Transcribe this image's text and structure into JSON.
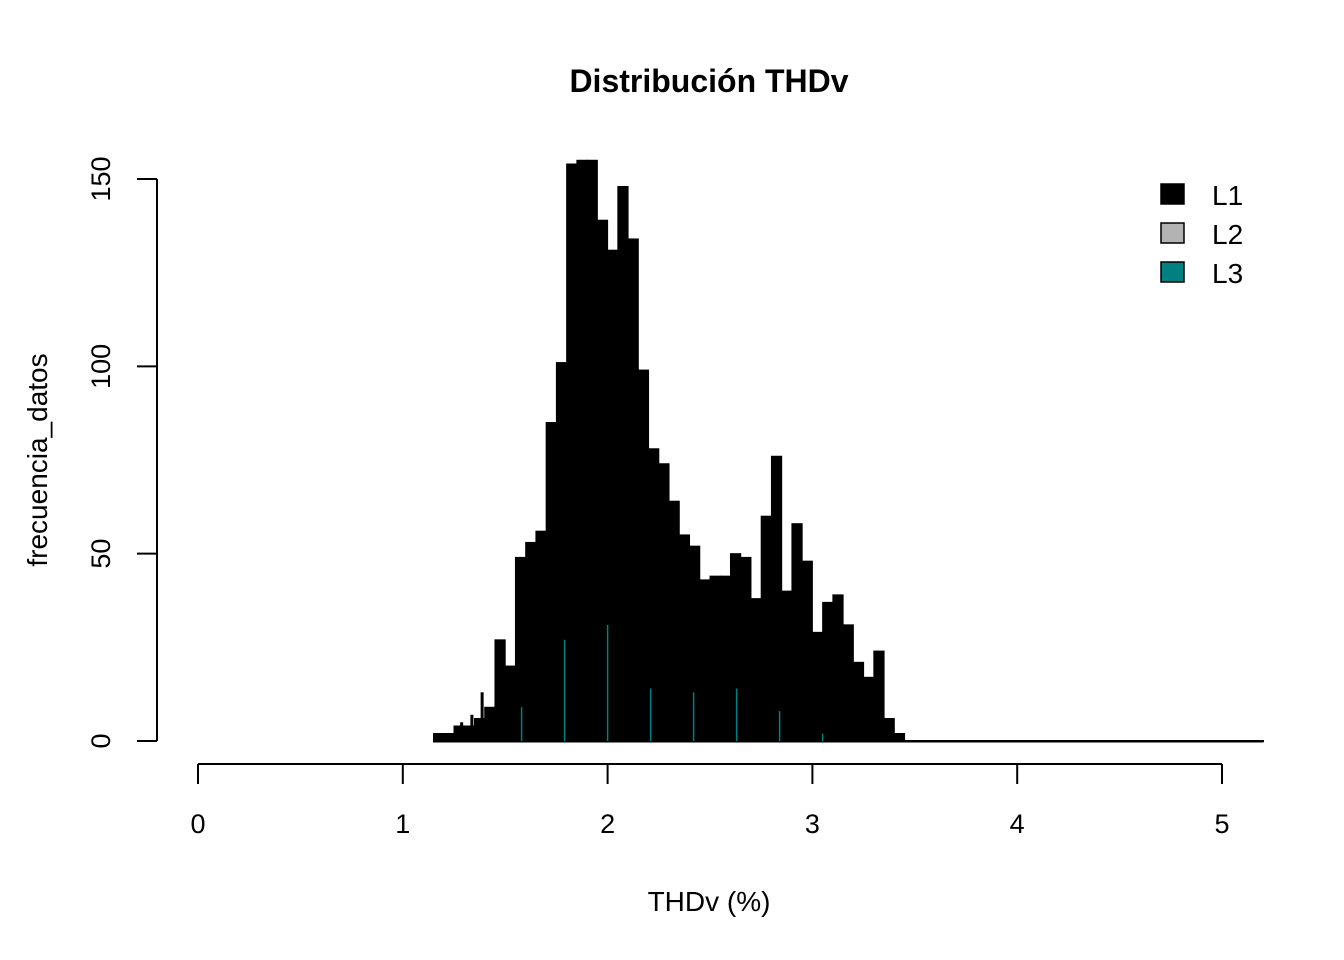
{
  "chart_data": {
    "type": "histogram",
    "title": "Distribución THDv",
    "xlabel": "THDv (%)",
    "ylabel": "frecuencia_datos",
    "xlim": [
      0,
      5
    ],
    "ylim": [
      0,
      150
    ],
    "x_ticks": [
      "0",
      "1",
      "2",
      "3",
      "4",
      "5"
    ],
    "y_ticks": [
      "0",
      "50",
      "100",
      "150"
    ],
    "bin_width": 0.05,
    "legend": {
      "position": "top-right"
    },
    "series": [
      {
        "name": "L1",
        "color": "#000000",
        "bins": [
          [
            1.15,
            2
          ],
          [
            1.2,
            2
          ],
          [
            1.25,
            4
          ],
          [
            1.3,
            4
          ],
          [
            1.35,
            6
          ],
          [
            1.4,
            9
          ],
          [
            1.45,
            27
          ],
          [
            1.5,
            20
          ],
          [
            1.55,
            49
          ],
          [
            1.6,
            53
          ],
          [
            1.65,
            56
          ],
          [
            1.7,
            85
          ],
          [
            1.75,
            101
          ],
          [
            1.8,
            154
          ],
          [
            1.85,
            155
          ],
          [
            1.9,
            155
          ],
          [
            1.95,
            139
          ],
          [
            2.0,
            131
          ],
          [
            2.05,
            148
          ],
          [
            2.1,
            134
          ],
          [
            2.15,
            99
          ],
          [
            2.2,
            78
          ],
          [
            2.25,
            74
          ],
          [
            2.3,
            64
          ],
          [
            2.35,
            55
          ],
          [
            2.4,
            52
          ],
          [
            2.45,
            43
          ],
          [
            2.5,
            44
          ],
          [
            2.55,
            44
          ],
          [
            2.6,
            50
          ],
          [
            2.65,
            49
          ],
          [
            2.7,
            38
          ],
          [
            2.75,
            60
          ],
          [
            2.8,
            76
          ],
          [
            2.85,
            40
          ],
          [
            2.9,
            58
          ],
          [
            2.95,
            48
          ],
          [
            3.0,
            29
          ],
          [
            3.05,
            37
          ],
          [
            3.1,
            39
          ],
          [
            3.15,
            31
          ],
          [
            3.2,
            21
          ],
          [
            3.25,
            17
          ],
          [
            3.3,
            24
          ],
          [
            3.35,
            6
          ],
          [
            3.4,
            2
          ],
          [
            3.45,
            0
          ],
          [
            3.5,
            0
          ],
          [
            3.55,
            0
          ],
          [
            3.6,
            0
          ],
          [
            3.65,
            0
          ],
          [
            3.7,
            0
          ],
          [
            3.75,
            0
          ],
          [
            3.8,
            0
          ],
          [
            3.85,
            0
          ],
          [
            3.9,
            0
          ],
          [
            3.95,
            0
          ],
          [
            4.0,
            0
          ],
          [
            4.05,
            0
          ],
          [
            4.1,
            0
          ],
          [
            4.15,
            0
          ],
          [
            4.2,
            0
          ],
          [
            4.25,
            0
          ],
          [
            4.3,
            0
          ],
          [
            4.35,
            0
          ],
          [
            4.4,
            0
          ],
          [
            4.45,
            0
          ],
          [
            4.5,
            0
          ],
          [
            4.55,
            0
          ],
          [
            4.6,
            0
          ],
          [
            4.65,
            0
          ],
          [
            4.7,
            0
          ],
          [
            4.75,
            0
          ],
          [
            4.8,
            0
          ],
          [
            4.85,
            0
          ],
          [
            4.9,
            0
          ],
          [
            4.95,
            0
          ],
          [
            5.0,
            0
          ],
          [
            5.05,
            0
          ],
          [
            5.1,
            0
          ],
          [
            5.15,
            0
          ]
        ],
        "outliers": [
          [
            1.28,
            5
          ],
          [
            1.33,
            7
          ],
          [
            1.38,
            13
          ]
        ]
      },
      {
        "name": "L2",
        "color": "#b3b3b3",
        "bins": []
      },
      {
        "name": "L3",
        "color": "#008080",
        "lines": [
          [
            1.58,
            9
          ],
          [
            1.79,
            27
          ],
          [
            2.0,
            31
          ],
          [
            2.21,
            14
          ],
          [
            2.42,
            13
          ],
          [
            2.63,
            14
          ],
          [
            2.84,
            8
          ],
          [
            3.05,
            2
          ]
        ]
      }
    ]
  }
}
